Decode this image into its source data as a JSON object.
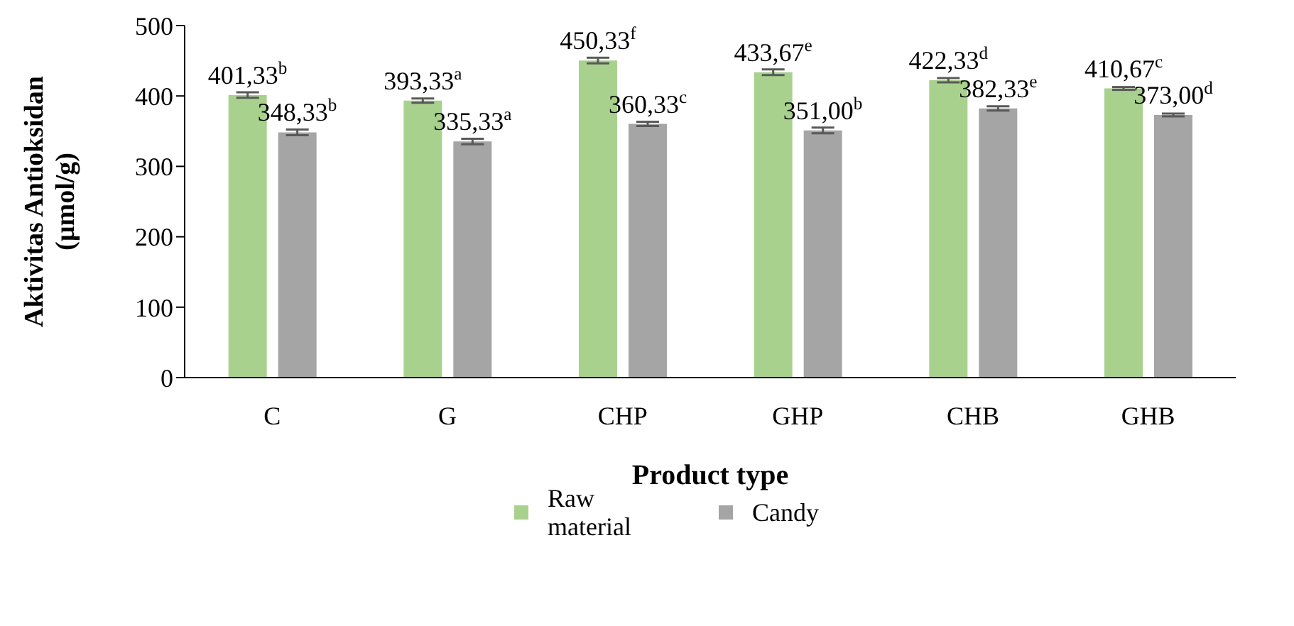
{
  "chart_data": {
    "type": "bar",
    "ylabel": "Aktivitas Antioksidan (µmol/g)",
    "xlabel": "Product type",
    "categories": [
      "C",
      "G",
      "CHP",
      "GHP",
      "CHB",
      "GHB"
    ],
    "series": [
      {
        "name": "Raw material",
        "color": "#a9d18e",
        "values": [
          401.33,
          393.33,
          450.33,
          433.67,
          422.33,
          410.67
        ],
        "errors": [
          4,
          3,
          4,
          4,
          3,
          2
        ],
        "value_labels": [
          "401,33$^{b}$",
          "393,33$^{a}$",
          "450,33$^{f}$",
          "433,67$^{e}$",
          "422,33$^{d}$",
          "410,67$^{c}$"
        ]
      },
      {
        "name": "Candy",
        "color": "#a5a5a5",
        "values": [
          348.33,
          335.33,
          360.33,
          351.0,
          382.33,
          373.0
        ],
        "errors": [
          4,
          4,
          3,
          4,
          3,
          2
        ],
        "value_labels": [
          "348,33$^{b}$",
          "335,33$^{a}$",
          "360,33$^{c}$",
          "351,00$^{b}$",
          "382,33$^{e}$",
          "373,00$^{d}$"
        ]
      }
    ],
    "ylim": [
      0,
      500
    ],
    "yticks": [
      0,
      100,
      200,
      300,
      400,
      500
    ],
    "legend": "bottom"
  }
}
